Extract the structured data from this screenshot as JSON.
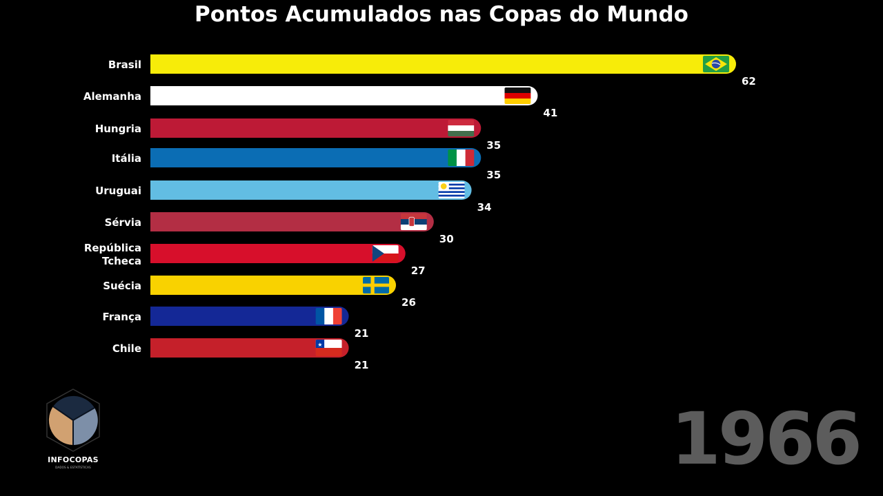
{
  "chart_data": {
    "type": "bar",
    "orientation": "horizontal",
    "title": "Pontos Acumulados nas Copas do Mundo",
    "xlabel": "",
    "ylabel": "",
    "xlim": [
      0,
      62
    ],
    "grid": false,
    "legend": "none",
    "year": "1966",
    "categories": [
      "Brasil",
      "Alemanha",
      "Hungria",
      "Itália",
      "Uruguai",
      "Sérvia",
      "República Tcheca",
      "Suécia",
      "França",
      "Chile"
    ],
    "category_lines": [
      [
        "Brasil"
      ],
      [
        "Alemanha"
      ],
      [
        "Hungria"
      ],
      [
        "Itália"
      ],
      [
        "Uruguai"
      ],
      [
        "Sérvia"
      ],
      [
        "República",
        "Tcheca"
      ],
      [
        "Suécia"
      ],
      [
        "França"
      ],
      [
        "Chile"
      ]
    ],
    "values": [
      62,
      41,
      35,
      35,
      34,
      30,
      27,
      26,
      21,
      21
    ],
    "value_labels": [
      "62",
      "41",
      "35",
      "35",
      "34",
      "30",
      "27",
      "26",
      "21",
      "21"
    ],
    "colors": [
      "#f7ec09",
      "#ffffff",
      "#bd1a36",
      "#0b6db4",
      "#62bde3",
      "#b32e44",
      "#d70f2b",
      "#f9d200",
      "#142896",
      "#c5202a"
    ],
    "flags": [
      "brazil-flag",
      "germany-flag",
      "hungary-flag",
      "italy-flag",
      "uruguay-flag",
      "serbia-flag",
      "czech-flag",
      "sweden-flag",
      "france-flag",
      "chile-flag"
    ]
  },
  "branding": {
    "logo_name": "INFOCOPAS",
    "logo_tagline": "DADOS & ESTATÍSTICAS",
    "logo_colors": [
      "#1b2a40",
      "#d1a171",
      "#7d8fa8"
    ]
  }
}
